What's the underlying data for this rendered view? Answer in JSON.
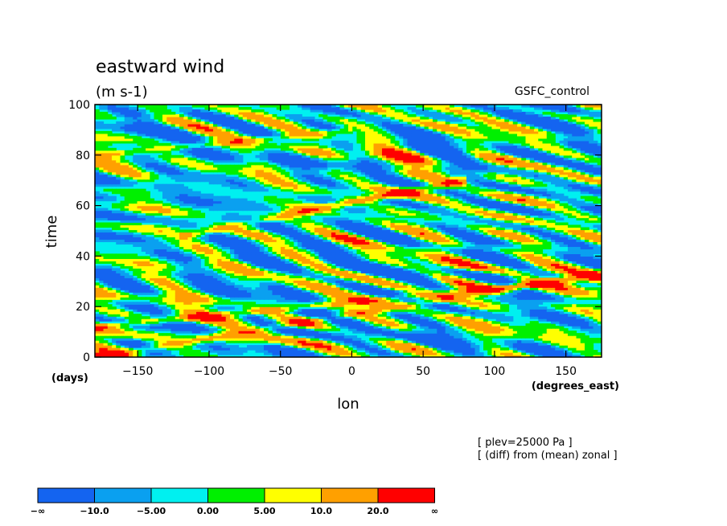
{
  "chart_data": {
    "type": "heatmap",
    "title": "eastward wind",
    "subtitle": "(m s-1)",
    "source_label": "GSFC_control",
    "xlabel": "lon",
    "x_unit": "(degrees_east)",
    "ylabel": "time",
    "y_unit": "(days)",
    "xlim": [
      -180,
      175
    ],
    "ylim": [
      0,
      100
    ],
    "x_ticks": [
      -150,
      -100,
      -50,
      0,
      50,
      100,
      150
    ],
    "x_tick_labels": [
      "−150",
      "−100",
      "−50",
      "0",
      "50",
      "100",
      "150"
    ],
    "y_ticks": [
      0,
      20,
      40,
      60,
      80,
      100
    ],
    "y_tick_labels": [
      "0",
      "20",
      "40",
      "60",
      "80",
      "100"
    ],
    "notes": [
      "[ plev=25000 Pa ]",
      "[ (diff) from (mean) zonal ]"
    ],
    "contour_levels": [
      -10,
      -5,
      0,
      5,
      10,
      20
    ],
    "colorbar": {
      "labels": [
        "−∞",
        "−10.0",
        "−5.00",
        "0.00",
        "5.00",
        "10.0",
        "20.0",
        "∞"
      ],
      "colors": [
        "#1464f0",
        "#0aa0f0",
        "#00f0f0",
        "#00f000",
        "#ffff00",
        "#ffa000",
        "#ff0000"
      ]
    },
    "grid": false,
    "features": [
      {
        "description": "eastward-propagating positive anomaly band",
        "lon_range": [
          -180,
          175
        ],
        "time_range": [
          0,
          35
        ]
      },
      {
        "description": "eastward-propagating positive anomaly band",
        "lon_range": [
          -180,
          175
        ],
        "time_range": [
          12,
          30
        ]
      },
      {
        "description": "eastward-propagating positive anomaly band",
        "lon_range": [
          -120,
          80
        ],
        "time_range": [
          48,
          70
        ]
      },
      {
        "description": "eastward-propagating positive anomaly band",
        "lon_range": [
          -180,
          0
        ],
        "time_range": [
          80,
          90
        ]
      }
    ]
  }
}
